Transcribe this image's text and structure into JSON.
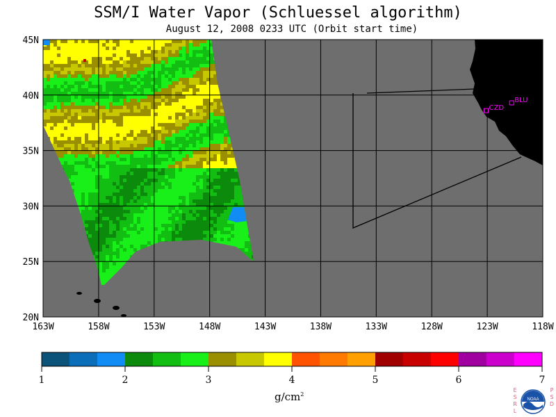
{
  "title": "SSM/I Water Vapor (Schluessel algorithm)",
  "subtitle": "August 12, 2008  0233 UTC  (Orbit start time)",
  "map": {
    "lon_range": [
      -163,
      -118
    ],
    "lat_range": [
      20,
      45
    ],
    "lon_ticks": [
      "163W",
      "158W",
      "153W",
      "148W",
      "143W",
      "138W",
      "133W",
      "128W",
      "123W",
      "118W"
    ],
    "lat_ticks": [
      "45N",
      "40N",
      "35N",
      "30N",
      "25N",
      "20N"
    ],
    "stations": [
      {
        "name": "CZD",
        "lon": -123.1,
        "lat": 38.6
      },
      {
        "name": "BLU",
        "lon": -120.8,
        "lat": 39.3
      }
    ],
    "colors": {
      "background": "#6e6e6e",
      "land": "#000000",
      "grid": "#000000",
      "station": "#ff00ff"
    }
  },
  "colorbar": {
    "unit": "g/cm",
    "unit_exp": "2",
    "tick_labels": [
      "1",
      "2",
      "3",
      "4",
      "5",
      "6",
      "7"
    ],
    "min": 1,
    "max": 7,
    "colors": [
      "#0b5378",
      "#0a6fb8",
      "#118cf5",
      "#0b8a0b",
      "#11be11",
      "#19ef19",
      "#998f00",
      "#c8c800",
      "#ffff00",
      "#ff5300",
      "#ff7a00",
      "#ff9f00",
      "#a00000",
      "#c90000",
      "#ff0000",
      "#a000a0",
      "#cc00cc",
      "#ff00ff"
    ]
  },
  "logo": {
    "left_text": "ESRL",
    "right_text": "PSD",
    "center_text": "NOAA",
    "colors": {
      "letters": "#e06080",
      "circle": "#1a52a8"
    }
  }
}
